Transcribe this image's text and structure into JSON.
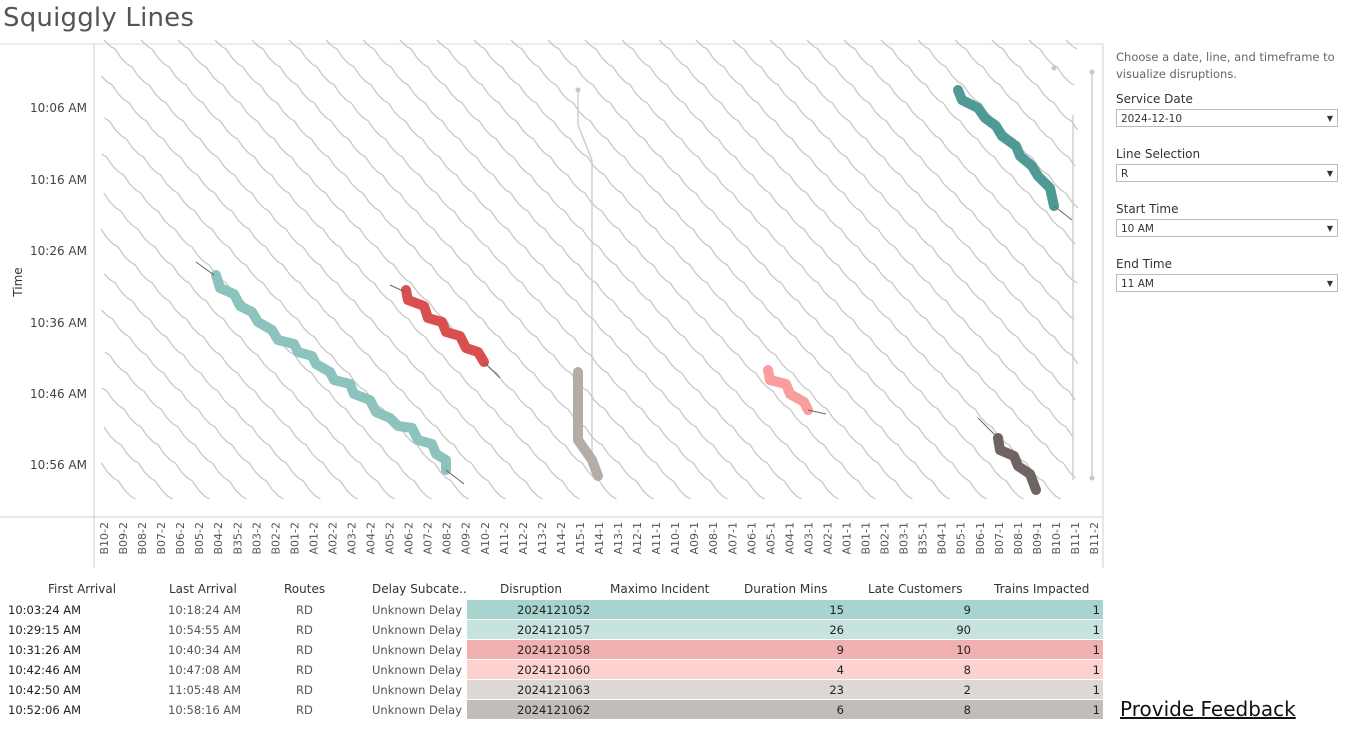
{
  "title": "Squiggly Lines",
  "chart": {
    "y_axis_label": "Time",
    "y_ticks": [
      "10:06 AM",
      "10:16 AM",
      "10:26 AM",
      "10:36 AM",
      "10:46 AM",
      "10:56 AM"
    ],
    "x_ticks": [
      "B10-2",
      "B09-2",
      "B08-2",
      "B07-2",
      "B06-2",
      "B05-2",
      "B04-2",
      "B35-2",
      "B03-2",
      "B02-2",
      "B01-2",
      "A01-2",
      "A02-2",
      "A03-2",
      "A04-2",
      "A05-2",
      "A06-2",
      "A07-2",
      "A08-2",
      "A09-2",
      "A10-2",
      "A11-2",
      "A12-2",
      "A13-2",
      "A14-2",
      "A15-1",
      "A14-1",
      "A13-1",
      "A12-1",
      "A11-1",
      "A10-1",
      "A09-1",
      "A08-1",
      "A07-1",
      "A06-1",
      "A05-1",
      "A04-1",
      "A03-1",
      "A02-1",
      "A01-1",
      "B01-1",
      "B02-1",
      "B03-1",
      "B35-1",
      "B04-1",
      "B05-1",
      "B06-1",
      "B07-1",
      "B08-1",
      "B09-1",
      "B10-1",
      "B11-1",
      "B11-2"
    ]
  },
  "controls": {
    "instructions": "Choose a date, line, and timeframe to visualize disruptions.",
    "service_date_label": "Service Date",
    "service_date_value": "2024-12-10",
    "line_label": "Line Selection",
    "line_value": "R",
    "start_label": "Start Time",
    "start_value": "10 AM",
    "end_label": "End Time",
    "end_value": "11 AM"
  },
  "table": {
    "headers": [
      "First Arrival",
      "Last Arrival",
      "Routes",
      "Delay Subcate..",
      "Disruption",
      "Maximo Incident",
      "Duration Mins",
      "Late Customers",
      "Trains Impacted"
    ],
    "rows": [
      {
        "first": "10:03:24 AM",
        "last": "10:18:24 AM",
        "route": "RD",
        "sub": "Unknown Delay",
        "disruption": "2024121052",
        "maximo": "",
        "duration": "15",
        "late": "9",
        "trains": "1",
        "color": "#a8d4cf"
      },
      {
        "first": "10:29:15 AM",
        "last": "10:54:55 AM",
        "route": "RD",
        "sub": "Unknown Delay",
        "disruption": "2024121057",
        "maximo": "",
        "duration": "26",
        "late": "90",
        "trains": "1",
        "color": "#c6e3de"
      },
      {
        "first": "10:31:26 AM",
        "last": "10:40:34 AM",
        "route": "RD",
        "sub": "Unknown Delay",
        "disruption": "2024121058",
        "maximo": "",
        "duration": "9",
        "late": "10",
        "trains": "1",
        "color": "#f1b1b1"
      },
      {
        "first": "10:42:46 AM",
        "last": "10:47:08 AM",
        "route": "RD",
        "sub": "Unknown Delay",
        "disruption": "2024121060",
        "maximo": "",
        "duration": "4",
        "late": "8",
        "trains": "1",
        "color": "#fcd2d0"
      },
      {
        "first": "10:42:50 AM",
        "last": "11:05:48 AM",
        "route": "RD",
        "sub": "Unknown Delay",
        "disruption": "2024121063",
        "maximo": "",
        "duration": "23",
        "late": "2",
        "trains": "1",
        "color": "#dcd8d5"
      },
      {
        "first": "10:52:06 AM",
        "last": "10:58:16 AM",
        "route": "RD",
        "sub": "Unknown Delay",
        "disruption": "2024121062",
        "maximo": "",
        "duration": "6",
        "late": "8",
        "trains": "1",
        "color": "#c3bdba"
      }
    ]
  },
  "disruption_colors": [
    "#4f9a94",
    "#8cc4bd",
    "#d94f4f",
    "#f99e9e",
    "#b5aca6",
    "#6f6462"
  ],
  "feedback_link": "Provide Feedback"
}
